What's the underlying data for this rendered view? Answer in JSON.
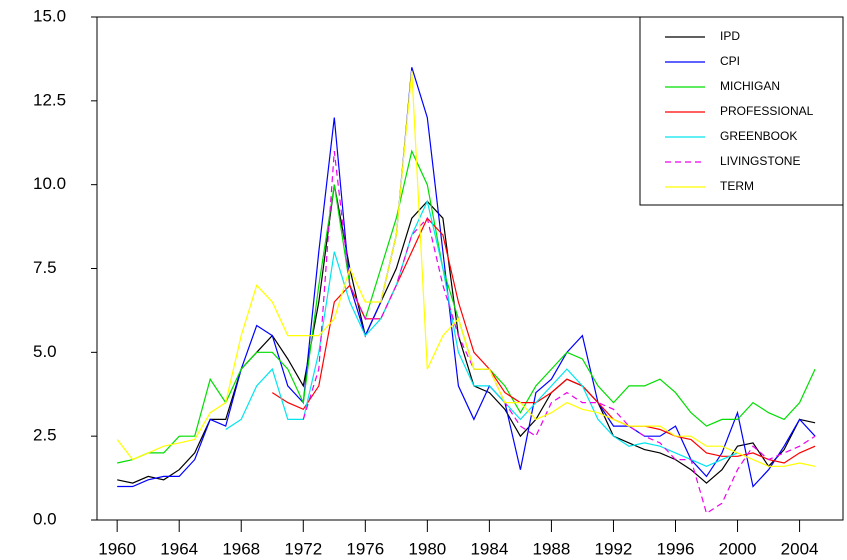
{
  "chart_data": {
    "type": "line",
    "x": [
      1960,
      1961,
      1962,
      1963,
      1964,
      1965,
      1966,
      1967,
      1968,
      1969,
      1970,
      1971,
      1972,
      1973,
      1974,
      1975,
      1976,
      1977,
      1978,
      1979,
      1980,
      1981,
      1982,
      1983,
      1984,
      1985,
      1986,
      1987,
      1988,
      1989,
      1990,
      1991,
      1992,
      1993,
      1994,
      1995,
      1996,
      1997,
      1998,
      1999,
      2000,
      2001,
      2002,
      2003,
      2004,
      2005
    ],
    "series": [
      {
        "name": "IPD",
        "color": "#000000",
        "values": [
          1.2,
          1.1,
          1.3,
          1.2,
          1.5,
          2.0,
          3.0,
          3.0,
          4.5,
          5.0,
          5.5,
          4.8,
          4.0,
          6.5,
          10.0,
          7.5,
          5.5,
          6.5,
          7.5,
          9.0,
          9.5,
          9.0,
          5.5,
          4.0,
          3.8,
          3.3,
          2.5,
          3.0,
          3.8,
          4.2,
          4.0,
          3.5,
          2.5,
          2.3,
          2.1,
          2.0,
          1.8,
          1.5,
          1.1,
          1.5,
          2.2,
          2.3,
          1.6,
          2.1,
          3.0,
          2.9
        ]
      },
      {
        "name": "CPI",
        "color": "#0000ff",
        "values": [
          1.0,
          1.0,
          1.2,
          1.3,
          1.3,
          1.8,
          3.0,
          2.8,
          4.5,
          5.8,
          5.5,
          4.0,
          3.5,
          8.0,
          12.0,
          7.0,
          5.5,
          6.5,
          8.5,
          13.5,
          12.0,
          8.0,
          4.0,
          3.0,
          4.0,
          3.5,
          1.5,
          3.8,
          4.2,
          5.0,
          5.5,
          3.5,
          2.8,
          2.8,
          2.5,
          2.5,
          2.8,
          1.8,
          1.3,
          2.0,
          3.2,
          1.0,
          1.5,
          2.2,
          3.0,
          2.5
        ]
      },
      {
        "name": "MICHIGAN",
        "color": "#00dd00",
        "values": [
          1.7,
          1.8,
          2.0,
          2.0,
          2.5,
          2.5,
          4.2,
          3.5,
          4.5,
          5.0,
          5.0,
          4.5,
          3.5,
          7.0,
          10.0,
          7.0,
          6.0,
          7.5,
          9.0,
          11.0,
          10.0,
          7.5,
          6.0,
          4.5,
          4.5,
          4.0,
          3.2,
          4.0,
          4.5,
          5.0,
          4.8,
          4.0,
          3.5,
          4.0,
          4.0,
          4.2,
          3.8,
          3.2,
          2.8,
          3.0,
          3.0,
          3.5,
          3.2,
          3.0,
          3.5,
          4.5
        ]
      },
      {
        "name": "PROFESSIONAL",
        "color": "#ff0000",
        "values": [
          null,
          null,
          null,
          null,
          null,
          null,
          null,
          null,
          null,
          null,
          3.8,
          3.5,
          3.3,
          4.0,
          6.5,
          7.0,
          6.0,
          6.0,
          7.0,
          8.0,
          9.0,
          8.5,
          6.5,
          5.0,
          4.5,
          3.8,
          3.5,
          3.5,
          3.8,
          4.2,
          4.0,
          3.5,
          3.0,
          2.8,
          2.8,
          2.7,
          2.5,
          2.4,
          2.0,
          1.9,
          1.9,
          2.0,
          1.8,
          1.7,
          2.0,
          2.2
        ]
      },
      {
        "name": "GREENBOOK",
        "color": "#00e5ee",
        "values": [
          null,
          null,
          null,
          null,
          null,
          null,
          null,
          2.7,
          3.0,
          4.0,
          4.5,
          3.0,
          3.0,
          5.0,
          8.0,
          6.5,
          5.5,
          6.0,
          7.0,
          8.5,
          9.5,
          7.5,
          5.0,
          4.0,
          4.0,
          3.5,
          3.0,
          3.5,
          4.0,
          4.5,
          4.0,
          3.0,
          2.5,
          2.2,
          2.3,
          2.2,
          2.0,
          1.8,
          1.6,
          1.8,
          2.0,
          null,
          null,
          null,
          null,
          null
        ]
      },
      {
        "name": "LIVINGSTONE",
        "color": "#ee00ee",
        "dashed": true,
        "values": [
          null,
          null,
          null,
          null,
          null,
          null,
          null,
          null,
          null,
          null,
          null,
          null,
          3.0,
          4.5,
          11.0,
          7.0,
          6.0,
          6.0,
          7.0,
          8.5,
          9.0,
          7.0,
          5.5,
          4.5,
          4.5,
          3.5,
          2.8,
          2.5,
          3.5,
          3.8,
          3.5,
          3.5,
          3.3,
          2.8,
          2.5,
          2.3,
          1.8,
          1.8,
          0.2,
          0.5,
          1.5,
          2.2,
          1.8,
          2.0,
          2.2,
          2.5
        ]
      },
      {
        "name": "TERM",
        "color": "#ffff00",
        "values": [
          2.4,
          1.8,
          2.0,
          2.2,
          2.3,
          2.4,
          3.2,
          3.5,
          5.5,
          7.0,
          6.5,
          5.5,
          5.5,
          5.5,
          6.0,
          7.5,
          6.5,
          6.5,
          8.5,
          13.4,
          4.5,
          5.5,
          6.0,
          4.5,
          4.5,
          3.5,
          3.5,
          3.0,
          3.2,
          3.5,
          3.3,
          3.2,
          3.0,
          2.8,
          2.8,
          2.8,
          2.5,
          2.5,
          2.2,
          2.2,
          2.0,
          1.8,
          1.6,
          1.6,
          1.7,
          1.6
        ]
      }
    ],
    "xlim": [
      1958.7,
      2006.8
    ],
    "xticks": [
      1960,
      1964,
      1968,
      1972,
      1976,
      1980,
      1984,
      1988,
      1992,
      1996,
      2000,
      2004
    ],
    "ylim": [
      0,
      15
    ],
    "yticks": [
      {
        "value": 0,
        "label": "0.0"
      },
      2.5,
      {
        "value": 5,
        "label": "5.0"
      },
      7.5,
      {
        "value": 10,
        "label": "10.0"
      },
      12.5,
      {
        "value": 15,
        "label": "15.0"
      }
    ],
    "legend": "top-right"
  }
}
